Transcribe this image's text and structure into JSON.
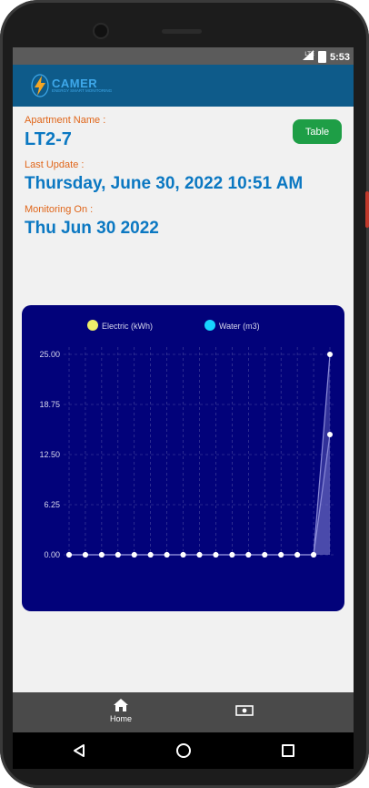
{
  "status_bar": {
    "network": "LTE",
    "time": "5:53"
  },
  "app": {
    "logo_text": "CAMER",
    "logo_subtext": "ENERGY SMART MONITORING"
  },
  "apartment": {
    "label": "Apartment Name :",
    "value": "LT2-7"
  },
  "last_update": {
    "label": "Last Update :",
    "value": "Thursday, June 30, 2022 10:51 AM"
  },
  "monitoring": {
    "label": "Monitoring On :",
    "value": "Thu Jun 30 2022"
  },
  "table_button": {
    "label": "Table"
  },
  "colors": {
    "electric": "#eded6a",
    "water": "#17d3ff",
    "chart_bg": "#02027a",
    "accent": "#0b78c2",
    "label": "#e0661a",
    "button": "#1e9e46"
  },
  "chart_data": {
    "type": "line",
    "title": "",
    "xlabel": "",
    "ylabel": "",
    "ylim": [
      0,
      25
    ],
    "y_ticks": [
      "25.00",
      "18.75",
      "12.50",
      "6.25",
      "0.00"
    ],
    "grid": true,
    "legend_position": "top",
    "x": [
      1,
      2,
      3,
      4,
      5,
      6,
      7,
      8,
      9,
      10,
      11,
      12,
      13,
      14,
      15,
      16,
      17
    ],
    "series": [
      {
        "name": "Electric (kWh)",
        "color": "#eded6a",
        "values": [
          0,
          0,
          0,
          0,
          0,
          0,
          0,
          0,
          0,
          0,
          0,
          0,
          0,
          0,
          0,
          0,
          25
        ]
      },
      {
        "name": "Water (m3)",
        "color": "#17d3ff",
        "values": [
          0,
          0,
          0,
          0,
          0,
          0,
          0,
          0,
          0,
          0,
          0,
          0,
          0,
          0,
          0,
          0,
          15
        ]
      }
    ]
  },
  "bottom_nav": {
    "home_label": "Home"
  }
}
